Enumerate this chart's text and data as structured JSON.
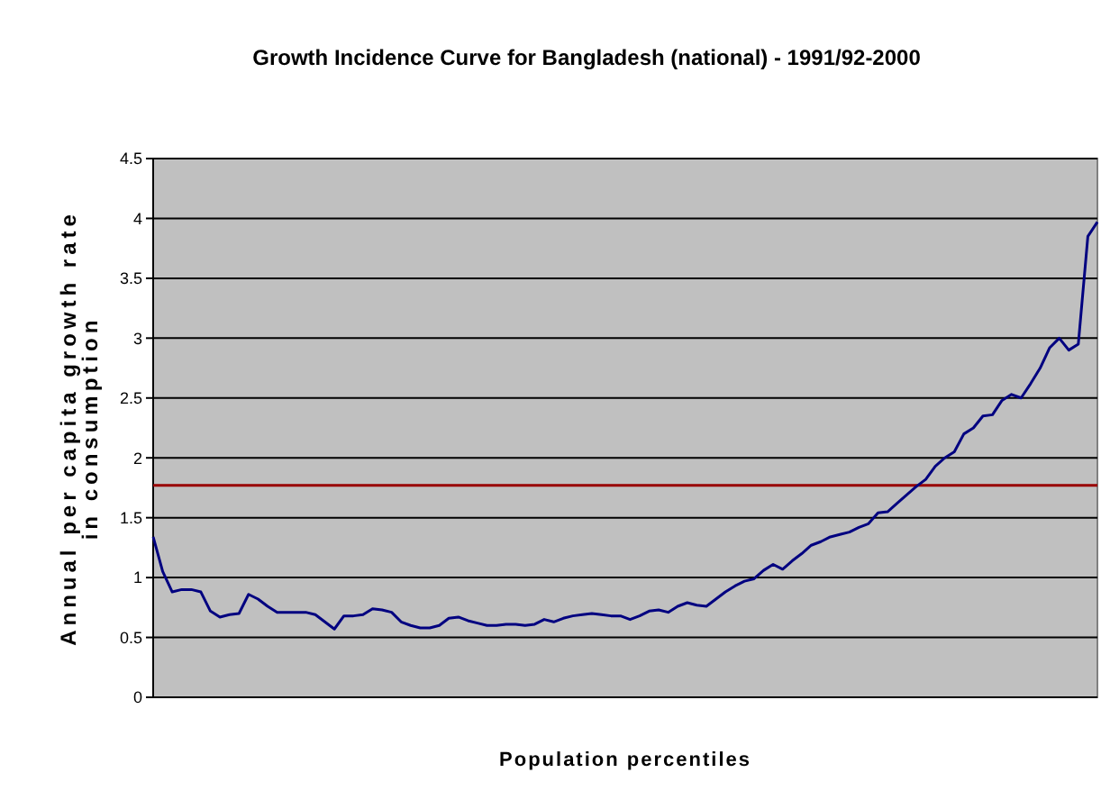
{
  "chart_data": {
    "type": "line",
    "title": "Growth Incidence Curve for Bangladesh (national) - 1991/92-2000",
    "xlabel": "Population percentiles",
    "ylabel": "Annual per capita growth rate\nin consumption",
    "categories": [
      null,
      null,
      null,
      null,
      null,
      null,
      null,
      null,
      null,
      null,
      null,
      null,
      null,
      null,
      null,
      null,
      null,
      null,
      null,
      null,
      null,
      null,
      null,
      null,
      null,
      null,
      null,
      null,
      null,
      null,
      null,
      null,
      null,
      null,
      null,
      null,
      null,
      null,
      null,
      null,
      null,
      null,
      null,
      null,
      null,
      null,
      null,
      null,
      null,
      null,
      null,
      null,
      null,
      null,
      null,
      null,
      null,
      null,
      null,
      null,
      null,
      null,
      null,
      null,
      null,
      null,
      null,
      null,
      null,
      null,
      null,
      null,
      null,
      null,
      null,
      null,
      null,
      null,
      null,
      null,
      null,
      null,
      null,
      null,
      null,
      null,
      null,
      null,
      null,
      null,
      null,
      null,
      null,
      null,
      null,
      null,
      null,
      null,
      null,
      null
    ],
    "series": [
      {
        "color": "#000080",
        "values": [
          1.34,
          1.05,
          0.88,
          0.9,
          0.9,
          0.88,
          0.72,
          0.67,
          0.69,
          0.7,
          0.86,
          0.82,
          0.76,
          0.71,
          0.71,
          0.71,
          0.71,
          0.69,
          0.63,
          0.57,
          0.68,
          0.68,
          0.69,
          0.74,
          0.73,
          0.71,
          0.63,
          0.6,
          0.58,
          0.58,
          0.6,
          0.66,
          0.67,
          0.64,
          0.62,
          0.6,
          0.6,
          0.61,
          0.61,
          0.6,
          0.61,
          0.65,
          0.63,
          0.66,
          0.68,
          0.69,
          0.7,
          0.69,
          0.68,
          0.68,
          0.65,
          0.68,
          0.72,
          0.73,
          0.71,
          0.76,
          0.79,
          0.77,
          0.76,
          0.82,
          0.88,
          0.93,
          0.97,
          0.99,
          1.06,
          1.11,
          1.07,
          1.14,
          1.2,
          1.27,
          1.3,
          1.34,
          1.36,
          1.38,
          1.42,
          1.45,
          1.54,
          1.55,
          1.62,
          1.69,
          1.76,
          1.82,
          1.93,
          2.0,
          2.05,
          2.2,
          2.25,
          2.35,
          2.36,
          2.48,
          2.53,
          2.5,
          2.62,
          2.75,
          2.92,
          3.0,
          2.9,
          2.95,
          3.85,
          3.97
        ]
      }
    ],
    "ylim": [
      0,
      4.5
    ],
    "yticks": [
      0,
      0.5,
      1,
      1.5,
      2,
      2.5,
      3,
      3.5,
      4,
      4.5
    ],
    "grid": "y",
    "marker": "none",
    "line_style": "solid",
    "ref_lines": [
      {
        "axis": "y",
        "value": 1.77,
        "color": "#990000"
      }
    ]
  }
}
